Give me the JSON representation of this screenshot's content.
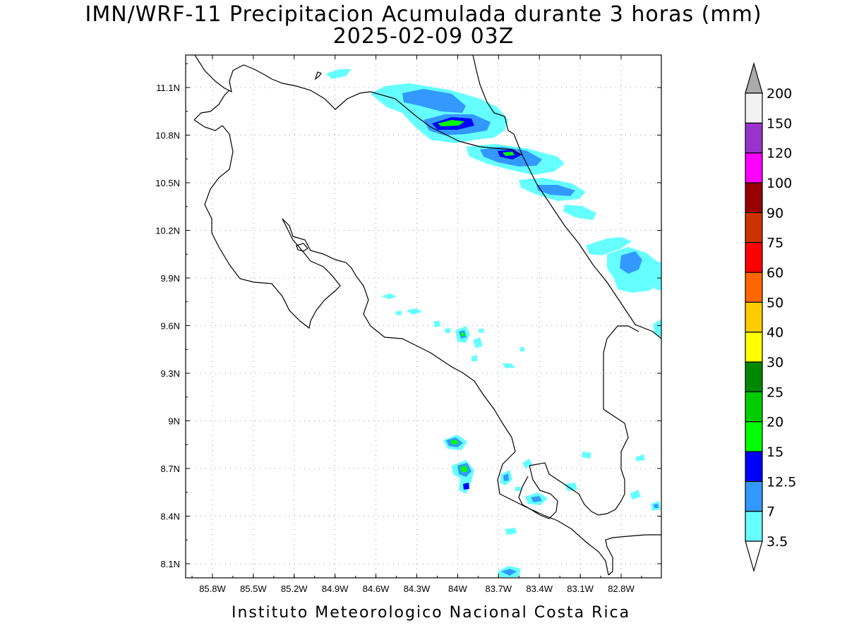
{
  "title_line1": "IMN/WRF-11 Precipitacion Acumulada durante 3 horas (mm)",
  "title_line2": "2025-02-09 03Z",
  "credit": "Instituto Meteorologico Nacional Costa Rica",
  "map": {
    "lon_ticks": [
      "85.8W",
      "85.5W",
      "85.2W",
      "84.9W",
      "84.6W",
      "84.3W",
      "84W",
      "83.7W",
      "83.4W",
      "83.1W",
      "82.8W"
    ],
    "lat_ticks": [
      "11.1N",
      "10.8N",
      "10.5N",
      "10.2N",
      "9.9N",
      "9.6N",
      "9.3N",
      "9N",
      "8.7N",
      "8.4N",
      "8.1N"
    ]
  },
  "colorbar": {
    "levels": [
      "3.5",
      "7",
      "12.5",
      "15",
      "20",
      "25",
      "30",
      "40",
      "50",
      "60",
      "75",
      "90",
      "100",
      "120",
      "150",
      "200"
    ],
    "colors": [
      "#66ffff",
      "#3399ff",
      "#0000ff",
      "#00ff00",
      "#00cc00",
      "#008800",
      "#ffff00",
      "#ffcc00",
      "#ff6600",
      "#ff0000",
      "#cc3300",
      "#990000",
      "#ff00ff",
      "#9933cc",
      "#f2f2f2",
      "#aaaaaa"
    ],
    "below_color": "#ffffff",
    "above_color": "#aaaaaa"
  },
  "colors": {
    "rain_light": "#66ffff",
    "rain_moderate": "#3399ff",
    "rain_heavy": "#0000ff",
    "rain_intense": "#00ff00"
  }
}
